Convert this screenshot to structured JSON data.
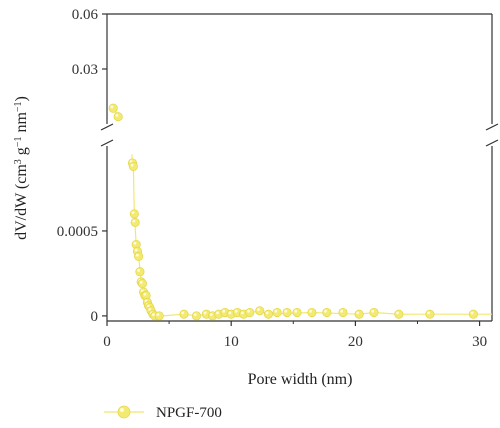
{
  "chart_data": {
    "type": "scatter",
    "title": "",
    "xlabel": "Pore width (nm)",
    "ylabel": "dV/dW (cm³ g⁻¹ nm⁻¹)",
    "ylabel_parts": {
      "pre": "dV/dW (cm",
      "sup1": "3",
      "mid1": " g",
      "sup2": "−1",
      "mid2": " nm",
      "sup3": "−1",
      "post": ")"
    },
    "xlim": [
      0,
      31
    ],
    "x_ticks": [
      0,
      10,
      20,
      30
    ],
    "x_tick_labels": [
      "0",
      "10",
      "20",
      "30"
    ],
    "y_axis_break": true,
    "y_upper_range": [
      0.0,
      0.06
    ],
    "y_upper_ticks": [
      0.03,
      0.06
    ],
    "y_upper_tick_labels": [
      "0.03",
      "0.06"
    ],
    "y_lower_range": [
      -3e-05,
      0.001
    ],
    "y_lower_ticks": [
      0,
      0.0005
    ],
    "y_lower_tick_labels": [
      "0",
      "0.0005"
    ],
    "grid": false,
    "legend_position": "bottom-left",
    "series": [
      {
        "name": "NPGF-700",
        "color": "#f2e86e",
        "marker_color": "#f3ea72",
        "upper_points": [
          [
            0.5,
            0.0086
          ],
          [
            0.9,
            0.004
          ]
        ],
        "points": [
          [
            2.05,
            0.0009
          ],
          [
            2.12,
            0.00088
          ],
          [
            2.2,
            0.0006
          ],
          [
            2.27,
            0.00055
          ],
          [
            2.35,
            0.00042
          ],
          [
            2.45,
            0.00038
          ],
          [
            2.55,
            0.00035
          ],
          [
            2.65,
            0.00026
          ],
          [
            2.75,
            0.0002
          ],
          [
            2.85,
            0.00019
          ],
          [
            2.95,
            0.00014
          ],
          [
            3.05,
            0.00012
          ],
          [
            3.15,
            0.00012
          ],
          [
            3.25,
            8e-05
          ],
          [
            3.35,
            6e-05
          ],
          [
            3.45,
            5e-05
          ],
          [
            3.55,
            3e-05
          ],
          [
            3.7,
            1e-05
          ],
          [
            3.85,
            0.0
          ],
          [
            4.2,
            0.0
          ],
          [
            6.2,
            1e-05
          ],
          [
            7.2,
            0.0
          ],
          [
            8.0,
            1e-05
          ],
          [
            8.5,
            0.0
          ],
          [
            9.0,
            1e-05
          ],
          [
            9.5,
            2e-05
          ],
          [
            10.0,
            1e-05
          ],
          [
            10.5,
            2e-05
          ],
          [
            11.0,
            1e-05
          ],
          [
            11.5,
            2e-05
          ],
          [
            12.3,
            3e-05
          ],
          [
            13.0,
            1e-05
          ],
          [
            13.7,
            2e-05
          ],
          [
            14.5,
            2e-05
          ],
          [
            15.3,
            2e-05
          ],
          [
            16.5,
            2e-05
          ],
          [
            17.7,
            2e-05
          ],
          [
            19.0,
            2e-05
          ],
          [
            20.3,
            1e-05
          ],
          [
            21.5,
            2e-05
          ],
          [
            23.5,
            1e-05
          ],
          [
            26.0,
            1e-05
          ],
          [
            29.5,
            1e-05
          ]
        ],
        "line": [
          [
            2.0,
            0.00095
          ],
          [
            2.05,
            0.0009
          ],
          [
            2.12,
            0.00088
          ],
          [
            2.2,
            0.0006
          ],
          [
            2.35,
            0.00042
          ],
          [
            2.55,
            0.00035
          ],
          [
            2.75,
            0.0002
          ],
          [
            2.95,
            0.00014
          ],
          [
            3.15,
            0.00012
          ],
          [
            3.35,
            6e-05
          ],
          [
            3.55,
            3e-05
          ],
          [
            3.85,
            0.0
          ],
          [
            4.5,
            0.0
          ],
          [
            6.2,
            1e-05
          ],
          [
            7.2,
            0.0
          ],
          [
            8.0,
            1e-05
          ],
          [
            9.5,
            2e-05
          ],
          [
            11.0,
            1e-05
          ],
          [
            12.3,
            3e-05
          ],
          [
            13.0,
            1e-05
          ],
          [
            16.5,
            2e-05
          ],
          [
            20.3,
            1e-05
          ],
          [
            21.5,
            2e-05
          ],
          [
            23.5,
            1e-05
          ],
          [
            31.0,
            1e-05
          ]
        ]
      }
    ]
  },
  "legend": {
    "label": "NPGF-700"
  }
}
